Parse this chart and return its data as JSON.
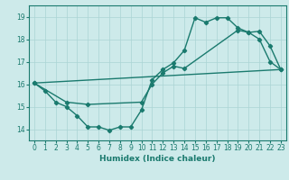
{
  "line1_x": [
    0,
    1,
    2,
    3,
    4,
    5,
    6,
    7,
    8,
    9,
    10,
    11,
    12,
    13,
    14,
    15,
    16,
    17,
    18,
    19,
    20,
    21,
    22,
    23
  ],
  "line1_y": [
    16.05,
    15.7,
    15.2,
    15.0,
    14.6,
    14.1,
    14.1,
    13.95,
    14.1,
    14.1,
    14.85,
    16.2,
    16.65,
    16.95,
    17.5,
    18.95,
    18.75,
    18.95,
    18.95,
    18.5,
    18.3,
    18.0,
    17.0,
    16.65
  ],
  "line2_x": [
    0,
    3,
    5,
    10,
    11,
    12,
    13,
    14,
    19,
    20,
    21,
    22,
    23
  ],
  "line2_y": [
    16.05,
    15.2,
    15.1,
    15.2,
    16.0,
    16.5,
    16.8,
    16.7,
    18.4,
    18.3,
    18.35,
    17.7,
    16.65
  ],
  "line3_x": [
    0,
    23
  ],
  "line3_y": [
    16.05,
    16.65
  ],
  "color": "#1a7a6e",
  "bg_color": "#cdeaea",
  "grid_color": "#aad4d4",
  "xlabel": "Humidex (Indice chaleur)",
  "xlim": [
    -0.5,
    23.5
  ],
  "ylim": [
    13.5,
    19.5
  ],
  "yticks": [
    14,
    15,
    16,
    17,
    18,
    19
  ],
  "xticks": [
    0,
    1,
    2,
    3,
    4,
    5,
    6,
    7,
    8,
    9,
    10,
    11,
    12,
    13,
    14,
    15,
    16,
    17,
    18,
    19,
    20,
    21,
    22,
    23
  ],
  "label_fontsize": 6.5,
  "tick_fontsize": 5.5,
  "linewidth": 1.0,
  "markersize": 2.2
}
